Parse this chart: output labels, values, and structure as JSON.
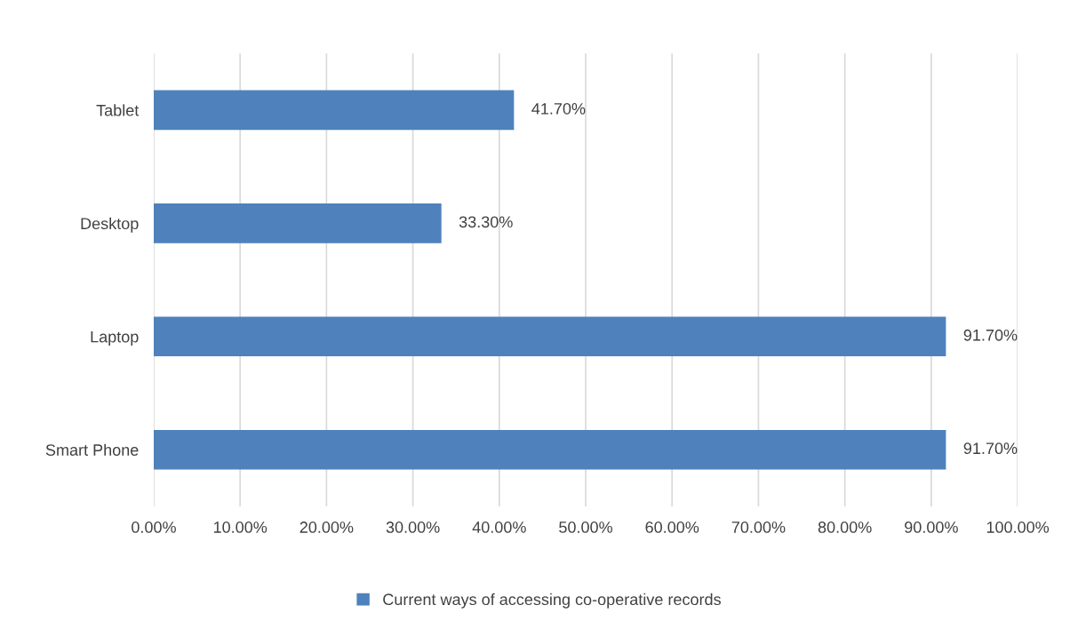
{
  "chart_data": {
    "type": "bar",
    "orientation": "horizontal",
    "categories": [
      "Tablet",
      "Desktop",
      "Laptop",
      "Smart Phone"
    ],
    "series": [
      {
        "name": "Current ways of accessing co-operative records",
        "color": "#4f81bd",
        "values": [
          41.7,
          33.3,
          91.7,
          91.7
        ],
        "value_labels": [
          "41.70%",
          "33.30%",
          "91.70%",
          "91.70%"
        ]
      }
    ],
    "xlim": [
      0,
      100
    ],
    "xticks": [
      {
        "value": 0,
        "label": "0.00%"
      },
      {
        "value": 10,
        "label": "10.00%"
      },
      {
        "value": 20,
        "label": "20.00%"
      },
      {
        "value": 30,
        "label": "30.00%"
      },
      {
        "value": 40,
        "label": "40.00%"
      },
      {
        "value": 50,
        "label": "50.00%"
      },
      {
        "value": 60,
        "label": "60.00%"
      },
      {
        "value": 70,
        "label": "70.00%"
      },
      {
        "value": 80,
        "label": "80.00%"
      },
      {
        "value": 90,
        "label": "90.00%"
      },
      {
        "value": 100,
        "label": "100.00%"
      }
    ],
    "grid": "x",
    "legend": "bottom"
  }
}
